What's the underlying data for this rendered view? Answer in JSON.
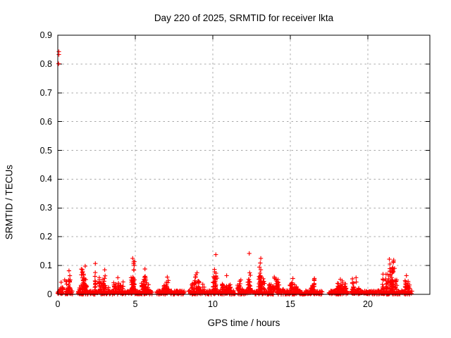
{
  "chart_data": {
    "type": "scatter",
    "title": "Day 220 of 2025, SRMTID for receiver lkta",
    "xlabel": "GPS time / hours",
    "ylabel": "SRMTID / TECUs",
    "xlim": [
      0,
      24
    ],
    "ylim": [
      0,
      0.9
    ],
    "xticks": [
      0,
      5,
      10,
      15,
      20
    ],
    "xtick_labels": [
      "0",
      "5",
      "10",
      "15",
      "20"
    ],
    "yticks": [
      0,
      0.1,
      0.2,
      0.3,
      0.4,
      0.5,
      0.6,
      0.7,
      0.8,
      0.9
    ],
    "ytick_labels": [
      "0",
      "0.1",
      "0.2",
      "0.3",
      "0.4",
      "0.5",
      "0.6",
      "0.7",
      "0.8",
      "0.9"
    ],
    "grid": true,
    "legend": "none",
    "marker": "plus",
    "series_name": "SRMTID",
    "colors": {
      "marker": "#ff0000",
      "grid": "#a8a8a8",
      "frame": "#000000",
      "text": "#000000",
      "background": "#ffffff"
    },
    "outlier_points": [
      [
        0.07,
        0.843
      ],
      [
        0.07,
        0.833
      ],
      [
        0.05,
        0.801
      ]
    ],
    "baseline_band": {
      "x_start": 0,
      "x_end": 22.85,
      "y_min": 0,
      "y_max": 0.013,
      "gaps": [
        [
          0.3,
          0.48
        ],
        [
          0.95,
          1.28
        ],
        [
          6.1,
          6.38
        ],
        [
          8.15,
          8.42
        ],
        [
          11.45,
          11.6
        ],
        [
          13.92,
          14.1
        ],
        [
          17.05,
          17.48
        ],
        [
          18.72,
          18.92
        ]
      ]
    },
    "clusters": [
      {
        "x0": 0.05,
        "x1": 0.35,
        "ymax": 0.042,
        "n": 10
      },
      {
        "x0": 0.3,
        "x1": 0.6,
        "ymax": 0.05,
        "n": 12
      },
      {
        "x0": 0.55,
        "x1": 0.95,
        "ymax": 0.082,
        "n": 22
      },
      {
        "x0": 1.35,
        "x1": 2.15,
        "ymax": 0.098,
        "n": 55
      },
      {
        "x0": 2.3,
        "x1": 2.55,
        "ymax": 0.107,
        "n": 12
      },
      {
        "x0": 2.55,
        "x1": 3.4,
        "ymax": 0.085,
        "n": 45
      },
      {
        "x0": 3.5,
        "x1": 4.3,
        "ymax": 0.058,
        "n": 28
      },
      {
        "x0": 4.55,
        "x1": 5.1,
        "ymax": 0.125,
        "n": 35
      },
      {
        "x0": 5.3,
        "x1": 6.05,
        "ymax": 0.088,
        "n": 35
      },
      {
        "x0": 6.7,
        "x1": 7.35,
        "ymax": 0.06,
        "n": 30
      },
      {
        "x0": 8.4,
        "x1": 9.6,
        "ymax": 0.075,
        "n": 45
      },
      {
        "x0": 9.95,
        "x1": 10.45,
        "ymax": 0.138,
        "n": 30
      },
      {
        "x0": 10.5,
        "x1": 11.4,
        "ymax": 0.065,
        "n": 40
      },
      {
        "x0": 11.5,
        "x1": 12.15,
        "ymax": 0.05,
        "n": 18
      },
      {
        "x0": 12.2,
        "x1": 12.5,
        "ymax": 0.142,
        "n": 14
      },
      {
        "x0": 12.9,
        "x1": 13.35,
        "ymax": 0.125,
        "n": 45
      },
      {
        "x0": 13.4,
        "x1": 14.6,
        "ymax": 0.06,
        "n": 55
      },
      {
        "x0": 14.7,
        "x1": 15.7,
        "ymax": 0.055,
        "n": 32
      },
      {
        "x0": 16.2,
        "x1": 16.95,
        "ymax": 0.055,
        "n": 25
      },
      {
        "x0": 17.9,
        "x1": 18.65,
        "ymax": 0.052,
        "n": 55
      },
      {
        "x0": 18.9,
        "x1": 19.5,
        "ymax": 0.058,
        "n": 25
      },
      {
        "x0": 20.8,
        "x1": 22.15,
        "ymax": 0.122,
        "n": 95
      },
      {
        "x0": 22.2,
        "x1": 22.75,
        "ymax": 0.065,
        "n": 28
      }
    ],
    "seed": 12
  }
}
